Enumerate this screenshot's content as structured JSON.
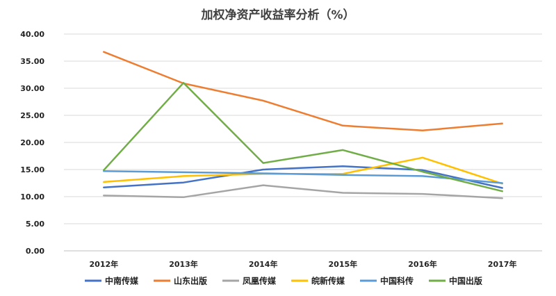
{
  "chart_data": {
    "type": "line",
    "title": "加权净资产收益率分析（%）",
    "x": [
      "2012年",
      "2013年",
      "2014年",
      "2015年",
      "2016年",
      "2017年"
    ],
    "ylim": [
      0,
      40
    ],
    "yticks": [
      "0.00",
      "5.00",
      "10.00",
      "15.00",
      "20.00",
      "25.00",
      "30.00",
      "35.00",
      "40.00"
    ],
    "grid": true,
    "legend_position": "bottom",
    "series": [
      {
        "name": "中南传媒",
        "color": "#4472C4",
        "values": [
          11.7,
          12.6,
          15.0,
          15.6,
          14.9,
          11.6
        ]
      },
      {
        "name": "山东出版",
        "color": "#ED7D31",
        "values": [
          36.7,
          30.9,
          27.7,
          23.1,
          22.2,
          23.5
        ]
      },
      {
        "name": "凤凰传媒",
        "color": "#A5A5A5",
        "values": [
          10.2,
          9.9,
          12.1,
          10.7,
          10.5,
          9.7
        ]
      },
      {
        "name": "皖新传媒",
        "color": "#FFC000",
        "values": [
          12.7,
          13.8,
          14.2,
          14.2,
          17.2,
          12.4
        ]
      },
      {
        "name": "中国科传",
        "color": "#5B9BD5",
        "values": [
          14.7,
          14.5,
          14.3,
          14.0,
          13.8,
          12.5
        ]
      },
      {
        "name": "中国出版",
        "color": "#70AD47",
        "values": [
          14.9,
          31.0,
          16.2,
          18.6,
          14.6,
          11.0
        ]
      }
    ]
  }
}
